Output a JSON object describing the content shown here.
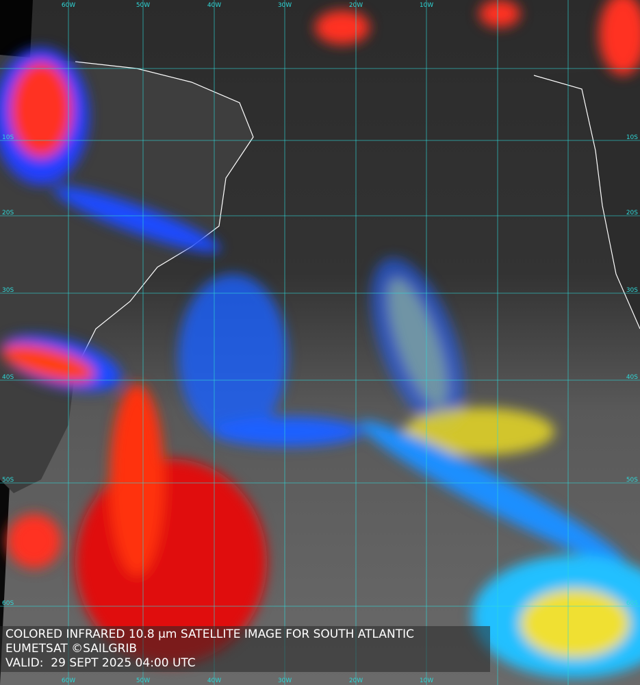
{
  "caption": {
    "lines": [
      "COLORED INFRARED 10.8 µm SATELLITE IMAGE FOR SOUTH ATLANTIC",
      "EUMETSAT ©SAILGRIB",
      "VALID:  29 SEPT 2025 04:00 UTC"
    ]
  },
  "grid": {
    "longitude_labels": [
      "60W",
      "50W",
      "40W",
      "30W",
      "20W",
      "10W"
    ],
    "latitude_labels": [
      "10S",
      "20S",
      "30S",
      "40S",
      "50S",
      "60S"
    ]
  }
}
